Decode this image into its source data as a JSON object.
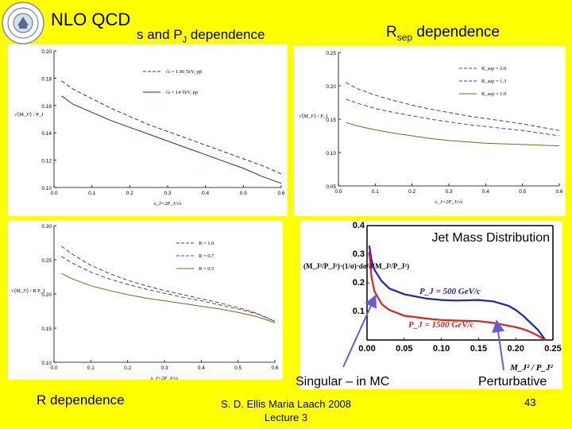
{
  "slide": {
    "title": "NLO QCD",
    "subtitle": "s and P",
    "subtitle_sub": "J",
    "subtitle_rest": " dependence",
    "right_title": "R",
    "right_title_sub": "sep",
    "right_title_rest": " dependence",
    "bottom_left": "R dependence",
    "credit_line1": "S. D. Ellis   Maria Laach 2008",
    "credit_line2": "Lecture 3",
    "page_number": "43",
    "annotation_singular": "Singular – in MC",
    "annotation_perturbative": "Perturbative"
  },
  "chart_data": [
    {
      "id": "s-pj-dependence",
      "type": "line",
      "title": "",
      "xlabel": "x_J=2P_J/√s",
      "ylabel": "√⟨M_J²⟩ / P_J",
      "xlim": [
        0,
        0.6
      ],
      "ylim": [
        0.1,
        0.2
      ],
      "xticks": [
        "0.0",
        "0.1",
        "0.2",
        "0.3",
        "0.4",
        "0.5",
        "0.6"
      ],
      "yticks": [
        "0.10",
        "0.12",
        "0.14",
        "0.16",
        "0.18",
        "0.20"
      ],
      "x": [
        0.02,
        0.05,
        0.1,
        0.15,
        0.2,
        0.25,
        0.3,
        0.35,
        0.4,
        0.45,
        0.5,
        0.55,
        0.6
      ],
      "series": [
        {
          "name": "√s = 1.96 TeV, pp̄",
          "style": "dashed",
          "color": "#333366",
          "values": [
            0.178,
            0.172,
            0.165,
            0.158,
            0.152,
            0.146,
            0.141,
            0.136,
            0.131,
            0.126,
            0.121,
            0.116,
            0.11
          ]
        },
        {
          "name": "√s = 14 TeV, pp",
          "style": "solid",
          "color": "#5b1e3a",
          "values": [
            0.167,
            0.161,
            0.155,
            0.149,
            0.144,
            0.139,
            0.134,
            0.129,
            0.124,
            0.119,
            0.114,
            0.108,
            0.103
          ]
        }
      ]
    },
    {
      "id": "rsep-dependence",
      "type": "line",
      "title": "",
      "xlabel": "x_J=2P_J/√s",
      "ylabel": "√⟨M_J²⟩ / P_J",
      "xlim": [
        0,
        0.6
      ],
      "ylim": [
        0.05,
        0.25
      ],
      "xticks": [
        "0.0",
        "0.1",
        "0.2",
        "0.3",
        "0.4",
        "0.5",
        "0.6"
      ],
      "yticks": [
        "0.05",
        "0.10",
        "0.15",
        "0.20",
        "0.25"
      ],
      "x": [
        0.02,
        0.05,
        0.1,
        0.15,
        0.2,
        0.25,
        0.3,
        0.35,
        0.4,
        0.45,
        0.5,
        0.55,
        0.6
      ],
      "series": [
        {
          "name": "R_sep = 2.0",
          "style": "dashed",
          "color": "#444444",
          "values": [
            0.205,
            0.196,
            0.186,
            0.178,
            0.171,
            0.165,
            0.16,
            0.155,
            0.151,
            0.147,
            0.143,
            0.138,
            0.133
          ]
        },
        {
          "name": "R_sep = 1.3",
          "style": "dashed",
          "color": "#6a3c6a",
          "values": [
            0.18,
            0.174,
            0.166,
            0.16,
            0.155,
            0.15,
            0.146,
            0.142,
            0.139,
            0.136,
            0.133,
            0.129,
            0.125
          ]
        },
        {
          "name": "R_sep = 1.0",
          "style": "solid",
          "color": "#6b6b2a",
          "values": [
            0.145,
            0.14,
            0.134,
            0.129,
            0.125,
            0.121,
            0.118,
            0.116,
            0.114,
            0.113,
            0.112,
            0.111,
            0.11
          ]
        }
      ]
    },
    {
      "id": "r-dependence",
      "type": "line",
      "title": "",
      "xlabel": "x_J=2P_J/√s",
      "ylabel": "√⟨M_J²⟩ / R P_J",
      "xlim": [
        0,
        0.6
      ],
      "ylim": [
        0.1,
        0.3
      ],
      "xticks": [
        "0.0",
        "0.1",
        "0.2",
        "0.3",
        "0.4",
        "0.5",
        "0.6"
      ],
      "yticks": [
        "0.10",
        "0.15",
        "0.20",
        "0.25",
        "0.30"
      ],
      "x": [
        0.02,
        0.05,
        0.1,
        0.15,
        0.2,
        0.25,
        0.3,
        0.35,
        0.4,
        0.45,
        0.5,
        0.55,
        0.6
      ],
      "series": [
        {
          "name": "R = 1.0",
          "style": "dashed",
          "color": "#444444",
          "values": [
            0.27,
            0.258,
            0.242,
            0.23,
            0.22,
            0.212,
            0.205,
            0.199,
            0.193,
            0.187,
            0.18,
            0.172,
            0.16
          ]
        },
        {
          "name": "R = 0.7",
          "style": "dashed",
          "color": "#6a3c6a",
          "values": [
            0.255,
            0.245,
            0.232,
            0.222,
            0.214,
            0.207,
            0.201,
            0.195,
            0.19,
            0.184,
            0.178,
            0.171,
            0.16
          ]
        },
        {
          "name": "R = 0.5",
          "style": "solid",
          "color": "#6b6b2a",
          "values": [
            0.23,
            0.222,
            0.212,
            0.205,
            0.199,
            0.194,
            0.19,
            0.186,
            0.182,
            0.178,
            0.173,
            0.167,
            0.158
          ]
        }
      ]
    },
    {
      "id": "jet-mass-distribution",
      "type": "line",
      "title": "Jet Mass Distribution",
      "xlabel": "M_J² / P_J²",
      "ylabel": "(M_J²/P_J²)·(1/σ)·dσ/d(M_J²/P_J²)",
      "xlim": [
        0,
        0.25
      ],
      "ylim": [
        0,
        0.4
      ],
      "xticks": [
        "0.00",
        "0.05",
        "0.10",
        "0.15",
        "0.20",
        "0.25"
      ],
      "yticks": [
        "0.1",
        "0.2",
        "0.3",
        "0.4"
      ],
      "x": [
        0.003,
        0.006,
        0.01,
        0.02,
        0.03,
        0.05,
        0.08,
        0.1,
        0.12,
        0.15,
        0.17,
        0.19,
        0.2,
        0.21,
        0.22,
        0.23,
        0.24
      ],
      "series": [
        {
          "name": "P_J = 500 GeV/c",
          "style": "solid",
          "color": "#2020c0",
          "values": [
            0.33,
            0.28,
            0.245,
            0.205,
            0.18,
            0.16,
            0.145,
            0.14,
            0.138,
            0.14,
            0.135,
            0.12,
            0.105,
            0.085,
            0.06,
            0.035,
            0.0
          ]
        },
        {
          "name": "P_J = 1500 GeV/c",
          "style": "solid",
          "color": "#e02020",
          "values": [
            0.31,
            0.22,
            0.17,
            0.125,
            0.105,
            0.085,
            0.075,
            0.07,
            0.068,
            0.066,
            0.06,
            0.05,
            0.045,
            0.038,
            0.028,
            0.015,
            0.0
          ]
        }
      ]
    }
  ]
}
